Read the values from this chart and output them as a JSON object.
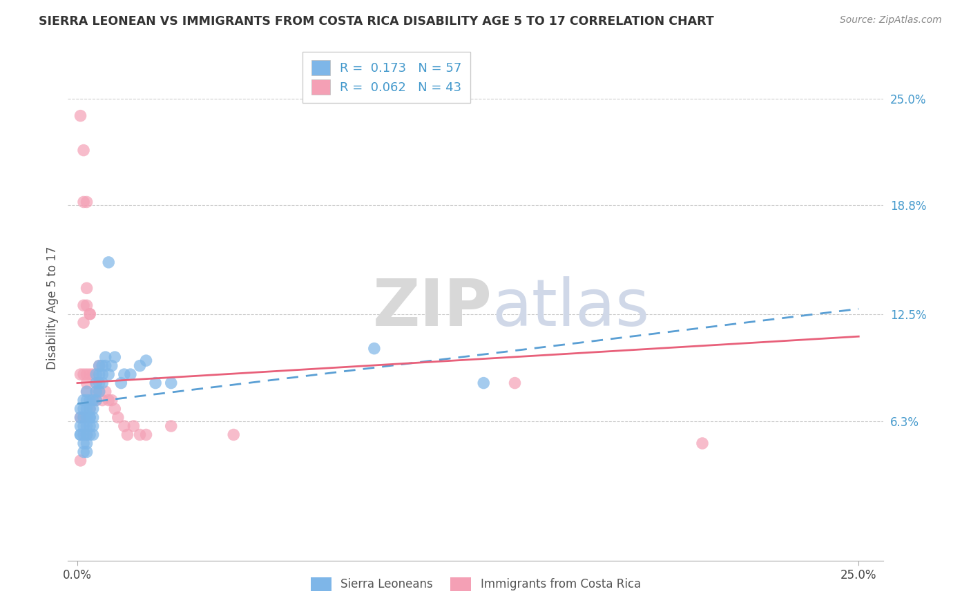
{
  "title": "SIERRA LEONEAN VS IMMIGRANTS FROM COSTA RICA DISABILITY AGE 5 TO 17 CORRELATION CHART",
  "source": "Source: ZipAtlas.com",
  "ylabel": "Disability Age 5 to 17",
  "xlim": [
    -0.003,
    0.258
  ],
  "ylim": [
    -0.018,
    0.275
  ],
  "xticks": [
    0.0,
    0.25
  ],
  "xticklabels": [
    "0.0%",
    "25.0%"
  ],
  "ytick_positions": [
    0.063,
    0.125,
    0.188,
    0.25
  ],
  "ytick_labels": [
    "6.3%",
    "12.5%",
    "18.8%",
    "25.0%"
  ],
  "blue_R": 0.173,
  "blue_N": 57,
  "pink_R": 0.062,
  "pink_N": 43,
  "blue_color": "#7eb6e8",
  "pink_color": "#f4a0b5",
  "blue_trend_color": "#5a9fd4",
  "pink_trend_color": "#e8607a",
  "blue_scatter_x": [
    0.001,
    0.001,
    0.001,
    0.001,
    0.001,
    0.002,
    0.002,
    0.002,
    0.002,
    0.002,
    0.002,
    0.002,
    0.003,
    0.003,
    0.003,
    0.003,
    0.003,
    0.003,
    0.003,
    0.003,
    0.004,
    0.004,
    0.004,
    0.004,
    0.004,
    0.004,
    0.005,
    0.005,
    0.005,
    0.005,
    0.005,
    0.006,
    0.006,
    0.006,
    0.006,
    0.007,
    0.007,
    0.007,
    0.007,
    0.008,
    0.008,
    0.008,
    0.009,
    0.009,
    0.01,
    0.01,
    0.011,
    0.012,
    0.014,
    0.015,
    0.017,
    0.02,
    0.022,
    0.025,
    0.03,
    0.095,
    0.13
  ],
  "blue_scatter_y": [
    0.055,
    0.06,
    0.065,
    0.07,
    0.055,
    0.06,
    0.065,
    0.07,
    0.075,
    0.055,
    0.05,
    0.045,
    0.06,
    0.065,
    0.07,
    0.075,
    0.08,
    0.055,
    0.05,
    0.045,
    0.065,
    0.07,
    0.075,
    0.065,
    0.06,
    0.055,
    0.075,
    0.07,
    0.065,
    0.06,
    0.055,
    0.075,
    0.08,
    0.085,
    0.09,
    0.095,
    0.09,
    0.085,
    0.08,
    0.085,
    0.09,
    0.095,
    0.1,
    0.095,
    0.155,
    0.09,
    0.095,
    0.1,
    0.085,
    0.09,
    0.09,
    0.095,
    0.098,
    0.085,
    0.085,
    0.105,
    0.085
  ],
  "pink_scatter_x": [
    0.001,
    0.001,
    0.001,
    0.001,
    0.002,
    0.002,
    0.002,
    0.002,
    0.002,
    0.002,
    0.003,
    0.003,
    0.003,
    0.003,
    0.003,
    0.003,
    0.003,
    0.004,
    0.004,
    0.004,
    0.004,
    0.005,
    0.005,
    0.006,
    0.006,
    0.006,
    0.007,
    0.007,
    0.008,
    0.009,
    0.01,
    0.011,
    0.012,
    0.013,
    0.015,
    0.016,
    0.018,
    0.02,
    0.022,
    0.03,
    0.05,
    0.14,
    0.2
  ],
  "pink_scatter_y": [
    0.24,
    0.09,
    0.065,
    0.04,
    0.22,
    0.19,
    0.13,
    0.12,
    0.09,
    0.065,
    0.19,
    0.14,
    0.13,
    0.09,
    0.085,
    0.08,
    0.055,
    0.125,
    0.125,
    0.09,
    0.07,
    0.09,
    0.075,
    0.085,
    0.08,
    0.075,
    0.095,
    0.08,
    0.075,
    0.08,
    0.075,
    0.075,
    0.07,
    0.065,
    0.06,
    0.055,
    0.06,
    0.055,
    0.055,
    0.06,
    0.055,
    0.085,
    0.05
  ],
  "watermark_zip": "ZIP",
  "watermark_atlas": "atlas",
  "background_color": "#ffffff",
  "grid_color": "#cccccc",
  "blue_trend_start_y": 0.073,
  "blue_trend_end_y": 0.128,
  "pink_trend_start_y": 0.085,
  "pink_trend_end_y": 0.112
}
